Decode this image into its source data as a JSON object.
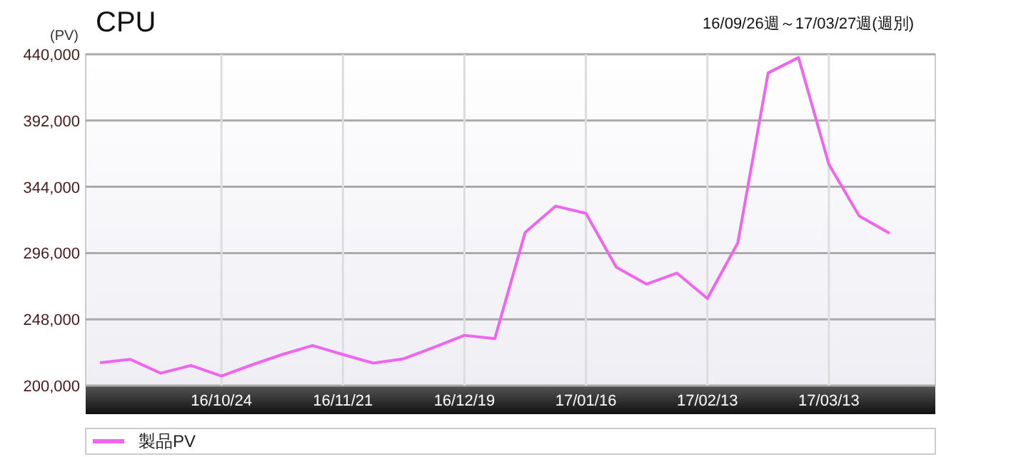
{
  "chart_data": {
    "type": "line",
    "title": "CPU",
    "subtitle": "16/09/26週～17/03/27週(週別)",
    "ylabel": "(PV)",
    "categories": [
      null,
      null,
      null,
      null,
      "16/10/24",
      null,
      null,
      null,
      "16/11/21",
      null,
      null,
      null,
      "16/12/19",
      null,
      null,
      null,
      "17/01/16",
      null,
      null,
      null,
      "17/02/13",
      null,
      null,
      null,
      "17/03/13",
      null,
      null
    ],
    "series": [
      {
        "name": "製品PV",
        "color": "#ee66ee",
        "values": [
          216600,
          219000,
          209000,
          214600,
          206900,
          215000,
          222500,
          229000,
          222500,
          216300,
          219400,
          227700,
          236400,
          234000,
          311000,
          330000,
          324800,
          285700,
          273500,
          281500,
          263100,
          303300,
          426500,
          437600,
          360200,
          322800,
          310300
        ]
      }
    ],
    "ylim": [
      200000,
      440000
    ],
    "yticks": [
      {
        "value": 200000,
        "label": "200,000"
      },
      {
        "value": 248000,
        "label": "248,000"
      },
      {
        "value": 296000,
        "label": "296,000"
      },
      {
        "value": 344000,
        "label": "344,000"
      },
      {
        "value": 392000,
        "label": "392,000"
      },
      {
        "value": 440000,
        "label": "440,000"
      }
    ],
    "grid": true,
    "legend": "bottom",
    "marker": "none",
    "line_style": "solid"
  }
}
